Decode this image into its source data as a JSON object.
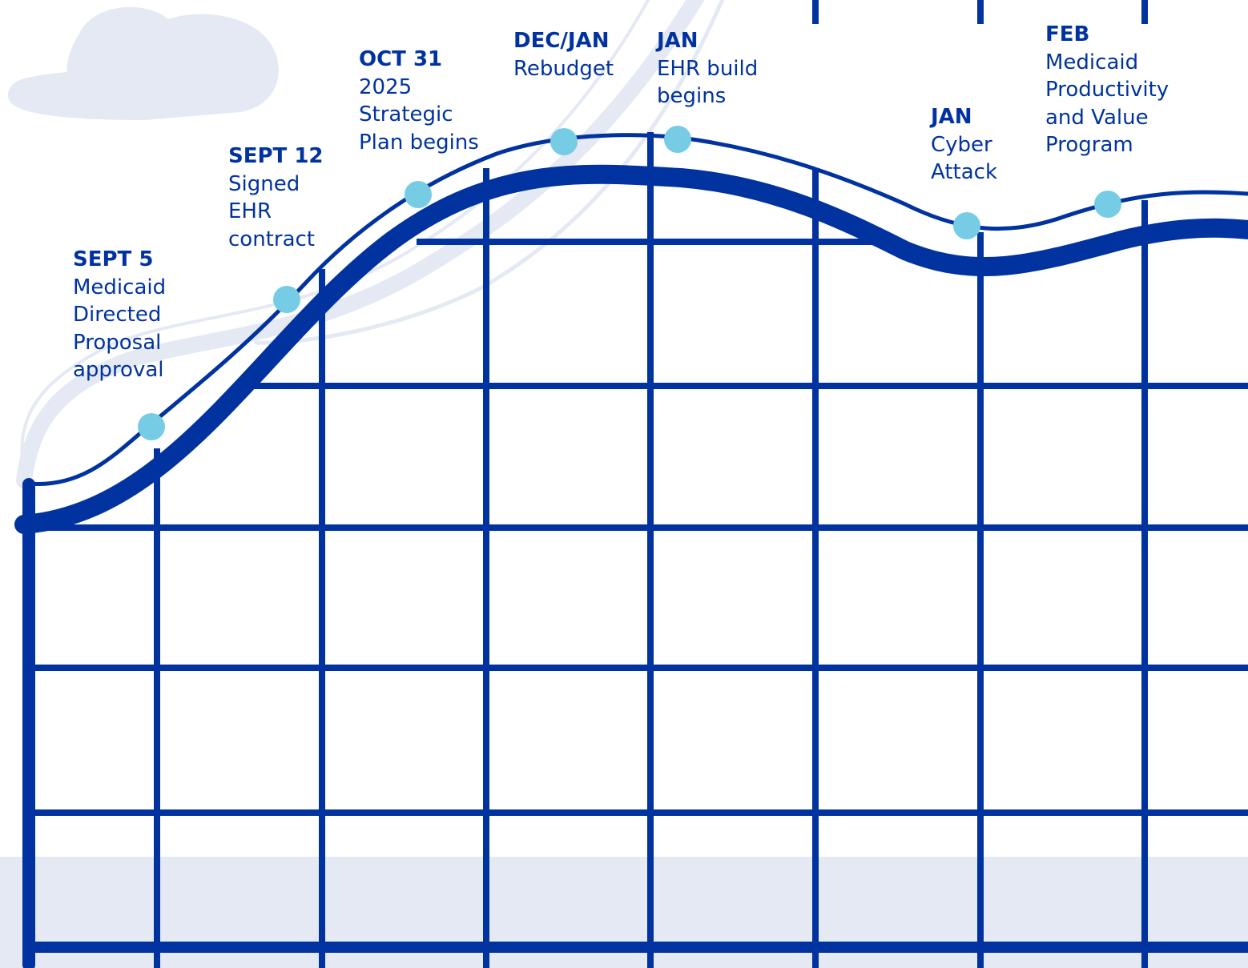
{
  "colors": {
    "structure": "#0033A0",
    "marker": "#76CCE4",
    "background_decor": "#E4E9F4"
  },
  "decor": [
    "cloud",
    "ground-band",
    "background-loop-track"
  ],
  "milestones": [
    {
      "date": "SEPT 5",
      "description": "Medicaid\nDirected\nProposal\napproval"
    },
    {
      "date": "SEPT 12",
      "description": "Signed\nEHR\ncontract"
    },
    {
      "date": "OCT 31",
      "description": "2025\nStrategic\nPlan begins"
    },
    {
      "date": "DEC/JAN",
      "description": "Rebudget"
    },
    {
      "date": "JAN",
      "description": "EHR build\nbegins"
    },
    {
      "date": "JAN",
      "description": "Cyber\nAttack"
    },
    {
      "date": "FEB",
      "description": "Medicaid\nProductivity\nand Value\nProgram"
    }
  ]
}
